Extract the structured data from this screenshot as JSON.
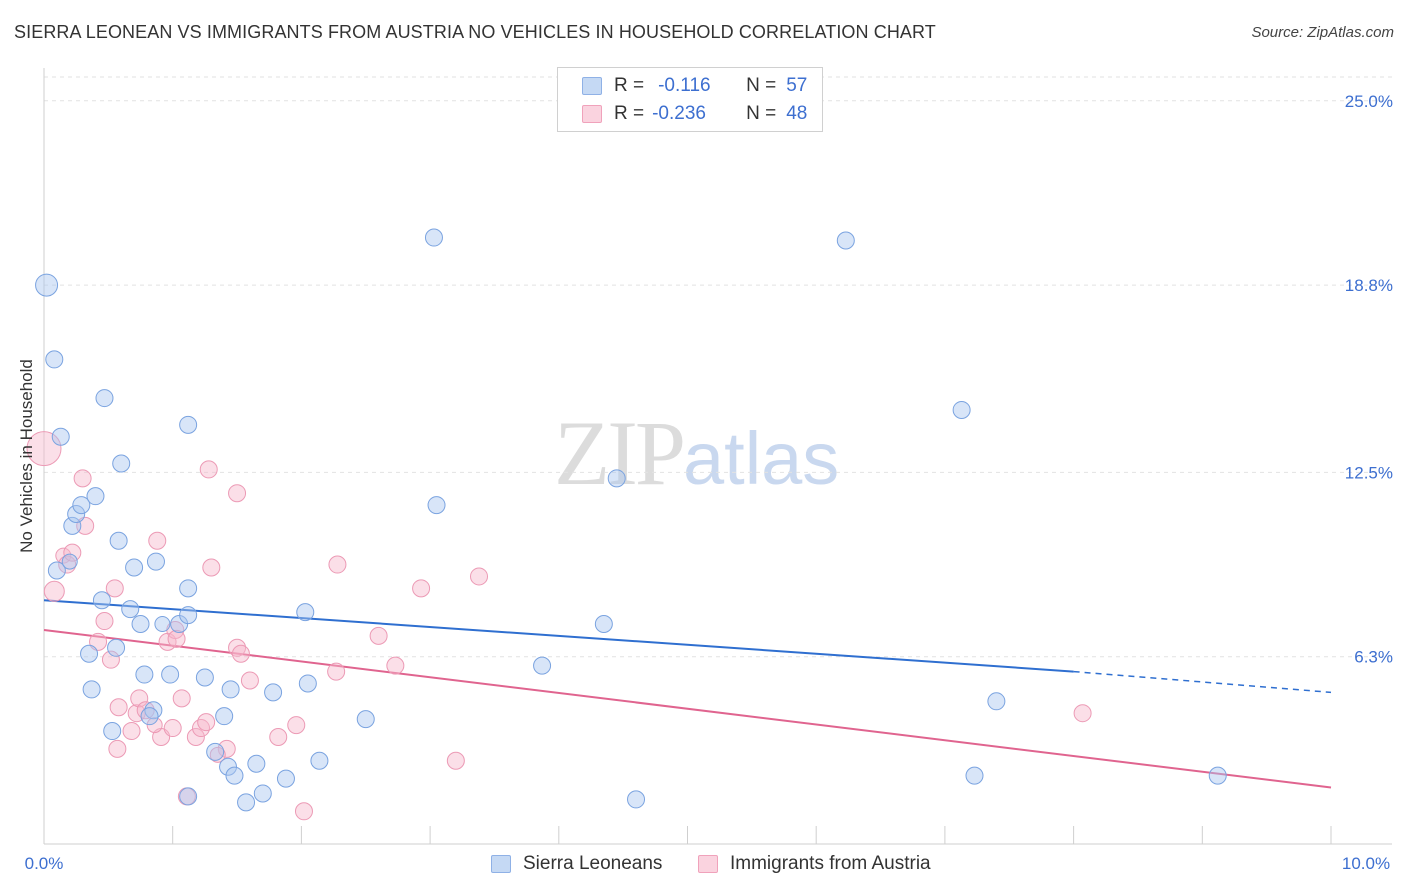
{
  "header": {
    "title": "SIERRA LEONEAN VS IMMIGRANTS FROM AUSTRIA NO VEHICLES IN HOUSEHOLD CORRELATION CHART",
    "source": "Source: ZipAtlas.com"
  },
  "watermark": {
    "zip": "ZIP",
    "atlas": "atlas"
  },
  "legend": {
    "rows": [
      {
        "r_label": "R =",
        "r_value": "-0.116",
        "n_label": "N =",
        "n_value": "57",
        "color": "#a9c6ef"
      },
      {
        "r_label": "R =",
        "r_value": "-0.236",
        "n_label": "N =",
        "n_value": "48",
        "color": "#f6b9cc"
      }
    ]
  },
  "bottom_legend": {
    "series_a": "Sierra Leoneans",
    "series_b": "Immigrants from Austria"
  },
  "chart_data": {
    "type": "scatter",
    "title": "SIERRA LEONEAN VS IMMIGRANTS FROM AUSTRIA NO VEHICLES IN HOUSEHOLD CORRELATION CHART",
    "xlabel": "",
    "ylabel": "No Vehicles in Household",
    "xlim": [
      0,
      10
    ],
    "ylim": [
      0,
      25.8
    ],
    "x_tick_labels": [
      "0.0%",
      "10.0%"
    ],
    "y_tick_labels": [
      "25.0%",
      "18.8%",
      "12.5%",
      "6.3%"
    ],
    "y_ticks": [
      25.0,
      18.8,
      12.5,
      6.3
    ],
    "grid": true,
    "legend_position": "top-center",
    "colors": {
      "series_a": "#5b8fd9",
      "series_b": "#e06f97",
      "line_a": "#2f6fd0",
      "line_b": "#e0648f"
    },
    "series": [
      {
        "name": "Sierra Leoneans",
        "r": -0.116,
        "n": 57,
        "trend": {
          "x0": 0,
          "y0": 8.2,
          "x1": 8.0,
          "y1": 5.8,
          "dash_to_x": 10.0,
          "dash_to_y": 5.1
        },
        "points": [
          [
            0.02,
            18.8,
            22
          ],
          [
            0.08,
            16.3,
            17
          ],
          [
            0.13,
            13.7,
            17
          ],
          [
            0.1,
            9.2,
            17
          ],
          [
            0.2,
            9.5,
            15
          ],
          [
            0.22,
            10.7,
            17
          ],
          [
            0.25,
            11.1,
            17
          ],
          [
            0.29,
            11.4,
            17
          ],
          [
            0.4,
            11.7,
            17
          ],
          [
            0.47,
            15.0,
            17
          ],
          [
            0.6,
            12.8,
            17
          ],
          [
            0.58,
            10.2,
            17
          ],
          [
            0.7,
            9.3,
            17
          ],
          [
            0.87,
            9.5,
            17
          ],
          [
            0.45,
            8.2,
            17
          ],
          [
            0.67,
            7.9,
            17
          ],
          [
            0.75,
            7.4,
            17
          ],
          [
            0.92,
            7.4,
            15
          ],
          [
            1.05,
            7.4,
            17
          ],
          [
            1.12,
            7.7,
            17
          ],
          [
            1.12,
            14.1,
            17
          ],
          [
            1.12,
            8.6,
            17
          ],
          [
            0.35,
            6.4,
            17
          ],
          [
            0.56,
            6.6,
            17
          ],
          [
            0.78,
            5.7,
            17
          ],
          [
            0.98,
            5.7,
            17
          ],
          [
            1.25,
            5.6,
            17
          ],
          [
            0.37,
            5.2,
            17
          ],
          [
            0.85,
            4.5,
            17
          ],
          [
            0.82,
            4.3,
            17
          ],
          [
            0.53,
            3.8,
            17
          ],
          [
            1.45,
            5.2,
            17
          ],
          [
            1.78,
            5.1,
            17
          ],
          [
            2.05,
            5.4,
            17
          ],
          [
            2.03,
            7.8,
            17
          ],
          [
            1.4,
            4.3,
            17
          ],
          [
            1.33,
            3.1,
            17
          ],
          [
            1.43,
            2.6,
            17
          ],
          [
            1.48,
            2.3,
            17
          ],
          [
            1.65,
            2.7,
            17
          ],
          [
            1.88,
            2.2,
            17
          ],
          [
            2.14,
            2.8,
            17
          ],
          [
            1.12,
            1.6,
            17
          ],
          [
            1.57,
            1.4,
            17
          ],
          [
            1.7,
            1.7,
            17
          ],
          [
            2.5,
            4.2,
            17
          ],
          [
            3.03,
            20.4,
            17
          ],
          [
            3.05,
            11.4,
            17
          ],
          [
            3.87,
            6.0,
            17
          ],
          [
            4.35,
            7.4,
            17
          ],
          [
            4.6,
            1.5,
            17
          ],
          [
            4.45,
            12.3,
            17
          ],
          [
            6.23,
            20.3,
            17
          ],
          [
            7.13,
            14.6,
            17
          ],
          [
            7.4,
            4.8,
            17
          ],
          [
            7.23,
            2.3,
            17
          ],
          [
            9.12,
            2.3,
            17
          ]
        ]
      },
      {
        "name": "Immigrants from Austria",
        "r": -0.236,
        "n": 48,
        "trend": {
          "x0": 0,
          "y0": 7.2,
          "x1": 10.0,
          "y1": 1.9
        },
        "points": [
          [
            0.0,
            13.3,
            34
          ],
          [
            0.08,
            8.5,
            20
          ],
          [
            0.15,
            9.7,
            15
          ],
          [
            0.18,
            9.4,
            17
          ],
          [
            0.22,
            9.8,
            17
          ],
          [
            0.3,
            12.3,
            17
          ],
          [
            0.32,
            10.7,
            17
          ],
          [
            0.42,
            6.8,
            17
          ],
          [
            0.47,
            7.5,
            17
          ],
          [
            0.52,
            6.2,
            17
          ],
          [
            0.55,
            8.6,
            17
          ],
          [
            0.57,
            3.2,
            17
          ],
          [
            0.68,
            3.8,
            17
          ],
          [
            0.72,
            4.4,
            17
          ],
          [
            0.74,
            4.9,
            17
          ],
          [
            0.79,
            4.5,
            17
          ],
          [
            0.88,
            10.2,
            17
          ],
          [
            0.91,
            3.6,
            17
          ],
          [
            0.96,
            6.8,
            17
          ],
          [
            1.0,
            3.9,
            17
          ],
          [
            1.02,
            7.2,
            17
          ],
          [
            1.07,
            4.9,
            17
          ],
          [
            1.11,
            1.6,
            17
          ],
          [
            1.18,
            3.6,
            17
          ],
          [
            1.22,
            3.9,
            17
          ],
          [
            1.26,
            4.1,
            17
          ],
          [
            1.28,
            12.6,
            17
          ],
          [
            1.3,
            9.3,
            17
          ],
          [
            1.42,
            3.2,
            17
          ],
          [
            1.5,
            6.6,
            17
          ],
          [
            1.5,
            11.8,
            17
          ],
          [
            1.53,
            6.4,
            17
          ],
          [
            1.6,
            5.5,
            17
          ],
          [
            1.82,
            3.6,
            17
          ],
          [
            1.96,
            4.0,
            17
          ],
          [
            2.02,
            1.1,
            17
          ],
          [
            2.27,
            5.8,
            17
          ],
          [
            2.28,
            9.4,
            17
          ],
          [
            2.6,
            7.0,
            17
          ],
          [
            2.73,
            6.0,
            17
          ],
          [
            2.93,
            8.6,
            17
          ],
          [
            3.2,
            2.8,
            17
          ],
          [
            3.38,
            9.0,
            17
          ],
          [
            8.07,
            4.4,
            17
          ],
          [
            1.03,
            6.9,
            17
          ],
          [
            0.58,
            4.6,
            17
          ],
          [
            0.86,
            4.0,
            15
          ],
          [
            1.35,
            3.0,
            15
          ]
        ]
      }
    ]
  }
}
